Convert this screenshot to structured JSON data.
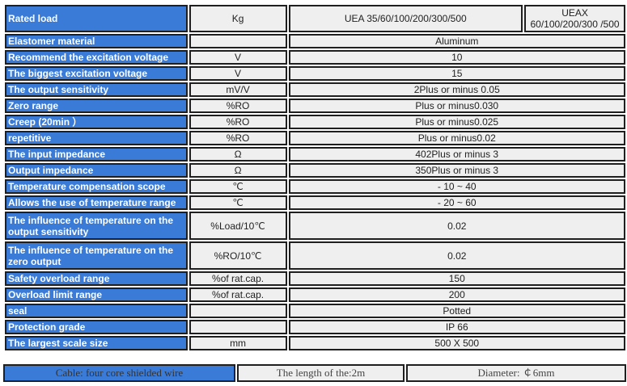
{
  "header": {
    "label": "Rated load",
    "unit": "Kg",
    "model_a": "UEA 35/60/100/200/300/500",
    "model_b": "UEAX 60/100/200/300 /500"
  },
  "rows": [
    {
      "label": "Elastomer material",
      "unit": "",
      "value": "Aluminum"
    },
    {
      "label": "Recommend the excitation voltage",
      "unit": "V",
      "value": "10"
    },
    {
      "label": "The biggest excitation voltage",
      "unit": "V",
      "value": "15"
    },
    {
      "label": "The output sensitivity",
      "unit": "mV/V",
      "value": "2Plus or minus 0.05"
    },
    {
      "label": "Zero range",
      "unit": "%RO",
      "value": "Plus or minus0.030"
    },
    {
      "label": "Creep (20min ）",
      "unit": "%RO",
      "value": "Plus or minus0.025"
    },
    {
      "label": "repetitive",
      "unit": "%RO",
      "value": "Plus or minus0.02"
    },
    {
      "label": "The input impedance",
      "unit": "Ω",
      "value": "402Plus or minus 3"
    },
    {
      "label": "Output impedance",
      "unit": "Ω",
      "value": "350Plus or minus 3"
    },
    {
      "label": "Temperature compensation scope",
      "unit": "℃",
      "value": "- 10 ~ 40"
    },
    {
      "label": "Allows the use of temperature range",
      "unit": "℃",
      "value": "- 20 ~ 60"
    },
    {
      "label": "The influence of temperature on the output sensitivity",
      "unit": "%Load/10℃",
      "value": "0.02",
      "tall": true
    },
    {
      "label": "The influence of temperature on the zero output",
      "unit": "%RO/10℃",
      "value": "0.02",
      "tall": true
    },
    {
      "label": "Safety overload range",
      "unit": "%of rat.cap.",
      "value": "150"
    },
    {
      "label": "Overload limit range",
      "unit": "%of rat.cap.",
      "value": "200"
    },
    {
      "label": "seal",
      "unit": "",
      "value": "Potted"
    },
    {
      "label": "Protection grade",
      "unit": "",
      "value": "IP 66"
    },
    {
      "label": "The largest scale size",
      "unit": "mm",
      "value": "500 X 500"
    }
  ],
  "footer": {
    "cable": "Cable: four core shielded wire",
    "length": "The length of the:2m",
    "diameter": "Diameter: ￠6mm"
  },
  "colors": {
    "label_bg": "#3a7bd8",
    "cell_bg": "#efefef",
    "border": "#1f1f1f"
  }
}
